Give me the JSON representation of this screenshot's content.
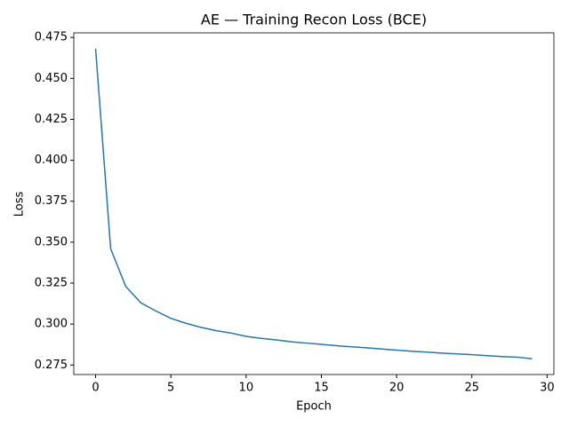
{
  "chart_data": {
    "type": "line",
    "title": "AE — Training Recon Loss (BCE)",
    "xlabel": "Epoch",
    "ylabel": "Loss",
    "x": [
      0,
      1,
      2,
      3,
      4,
      5,
      6,
      7,
      8,
      9,
      10,
      11,
      12,
      13,
      14,
      15,
      16,
      17,
      18,
      19,
      20,
      21,
      22,
      23,
      24,
      25,
      26,
      27,
      28,
      29
    ],
    "series": [
      {
        "name": "Loss",
        "color": "#1f77b4",
        "values": [
          0.468,
          0.346,
          0.323,
          0.313,
          0.308,
          0.3035,
          0.3005,
          0.298,
          0.296,
          0.2945,
          0.2925,
          0.2913,
          0.2903,
          0.2892,
          0.2884,
          0.2876,
          0.2868,
          0.2861,
          0.2855,
          0.2848,
          0.2841,
          0.2834,
          0.2829,
          0.2823,
          0.2818,
          0.2813,
          0.2807,
          0.2802,
          0.2798,
          0.2788
        ]
      }
    ],
    "xlim": [
      -1.45,
      30.45
    ],
    "xticks": [
      0,
      5,
      10,
      15,
      20,
      25,
      30
    ],
    "ylim": [
      0.2692,
      0.4778
    ],
    "yticks": [
      0.275,
      {
        "value": 0.3,
        "label": "0.300"
      },
      0.325,
      {
        "value": 0.35,
        "label": "0.350"
      },
      0.375,
      {
        "value": 0.4,
        "label": "0.400"
      },
      0.425,
      {
        "value": 0.45,
        "label": "0.450"
      },
      0.475
    ],
    "grid": false
  }
}
